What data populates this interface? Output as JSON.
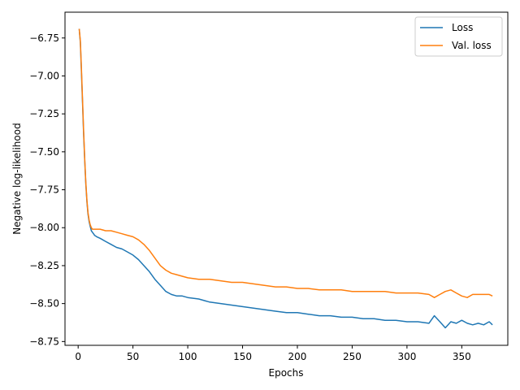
{
  "chart_data": {
    "type": "line",
    "title": "",
    "xlabel": "Epochs",
    "ylabel": "Negative log-likelihood",
    "xlim": [
      -12,
      392
    ],
    "ylim": [
      -8.775,
      -6.58
    ],
    "xticks": [
      0,
      50,
      100,
      150,
      200,
      250,
      300,
      350
    ],
    "yticks": [
      -6.75,
      -7.0,
      -7.25,
      -7.5,
      -7.75,
      -8.0,
      -8.25,
      -8.5,
      -8.75
    ],
    "ytick_labels": [
      "−6.75",
      "−7.00",
      "−7.25",
      "−7.50",
      "−7.75",
      "−8.00",
      "−8.25",
      "−8.50",
      "−8.75"
    ],
    "grid": false,
    "legend_position": "top-right",
    "series": [
      {
        "name": "Loss",
        "color": "#1f77b4",
        "x": [
          1,
          2,
          3,
          4,
          5,
          6,
          7,
          8,
          9,
          10,
          11,
          12,
          13,
          14,
          15,
          17,
          20,
          25,
          30,
          35,
          40,
          45,
          50,
          55,
          60,
          65,
          70,
          75,
          80,
          85,
          90,
          95,
          100,
          110,
          120,
          130,
          140,
          150,
          160,
          170,
          180,
          190,
          200,
          210,
          220,
          230,
          240,
          250,
          260,
          270,
          280,
          290,
          300,
          310,
          320,
          325,
          330,
          335,
          340,
          345,
          350,
          355,
          360,
          365,
          370,
          375,
          378
        ],
        "y": [
          -6.69,
          -6.78,
          -6.97,
          -7.18,
          -7.38,
          -7.56,
          -7.71,
          -7.83,
          -7.91,
          -7.96,
          -7.99,
          -8.02,
          -8.03,
          -8.04,
          -8.05,
          -8.06,
          -8.07,
          -8.09,
          -8.11,
          -8.13,
          -8.14,
          -8.16,
          -8.18,
          -8.21,
          -8.25,
          -8.29,
          -8.34,
          -8.38,
          -8.42,
          -8.44,
          -8.45,
          -8.45,
          -8.46,
          -8.47,
          -8.49,
          -8.5,
          -8.51,
          -8.52,
          -8.53,
          -8.54,
          -8.55,
          -8.56,
          -8.56,
          -8.57,
          -8.58,
          -8.58,
          -8.59,
          -8.59,
          -8.6,
          -8.6,
          -8.61,
          -8.61,
          -8.62,
          -8.62,
          -8.63,
          -8.58,
          -8.62,
          -8.66,
          -8.62,
          -8.63,
          -8.61,
          -8.63,
          -8.64,
          -8.63,
          -8.64,
          -8.62,
          -8.64
        ]
      },
      {
        "name": "Val. loss",
        "color": "#ff7f0e",
        "x": [
          1,
          2,
          3,
          4,
          5,
          6,
          7,
          8,
          9,
          10,
          11,
          12,
          13,
          14,
          15,
          17,
          20,
          25,
          30,
          35,
          40,
          45,
          50,
          55,
          60,
          65,
          70,
          75,
          80,
          85,
          90,
          95,
          100,
          110,
          120,
          130,
          140,
          150,
          160,
          170,
          180,
          190,
          200,
          210,
          220,
          230,
          240,
          250,
          260,
          270,
          280,
          290,
          300,
          310,
          320,
          325,
          330,
          335,
          340,
          345,
          350,
          355,
          360,
          365,
          370,
          375,
          378
        ],
        "y": [
          -6.69,
          -6.77,
          -6.95,
          -7.16,
          -7.36,
          -7.55,
          -7.7,
          -7.82,
          -7.9,
          -7.95,
          -7.98,
          -8.0,
          -8.01,
          -8.01,
          -8.01,
          -8.01,
          -8.01,
          -8.02,
          -8.02,
          -8.03,
          -8.04,
          -8.05,
          -8.06,
          -8.08,
          -8.11,
          -8.15,
          -8.2,
          -8.25,
          -8.28,
          -8.3,
          -8.31,
          -8.32,
          -8.33,
          -8.34,
          -8.34,
          -8.35,
          -8.36,
          -8.36,
          -8.37,
          -8.38,
          -8.39,
          -8.39,
          -8.4,
          -8.4,
          -8.41,
          -8.41,
          -8.41,
          -8.42,
          -8.42,
          -8.42,
          -8.42,
          -8.43,
          -8.43,
          -8.43,
          -8.44,
          -8.46,
          -8.44,
          -8.42,
          -8.41,
          -8.43,
          -8.45,
          -8.46,
          -8.44,
          -8.44,
          -8.44,
          -8.44,
          -8.45
        ]
      }
    ]
  }
}
